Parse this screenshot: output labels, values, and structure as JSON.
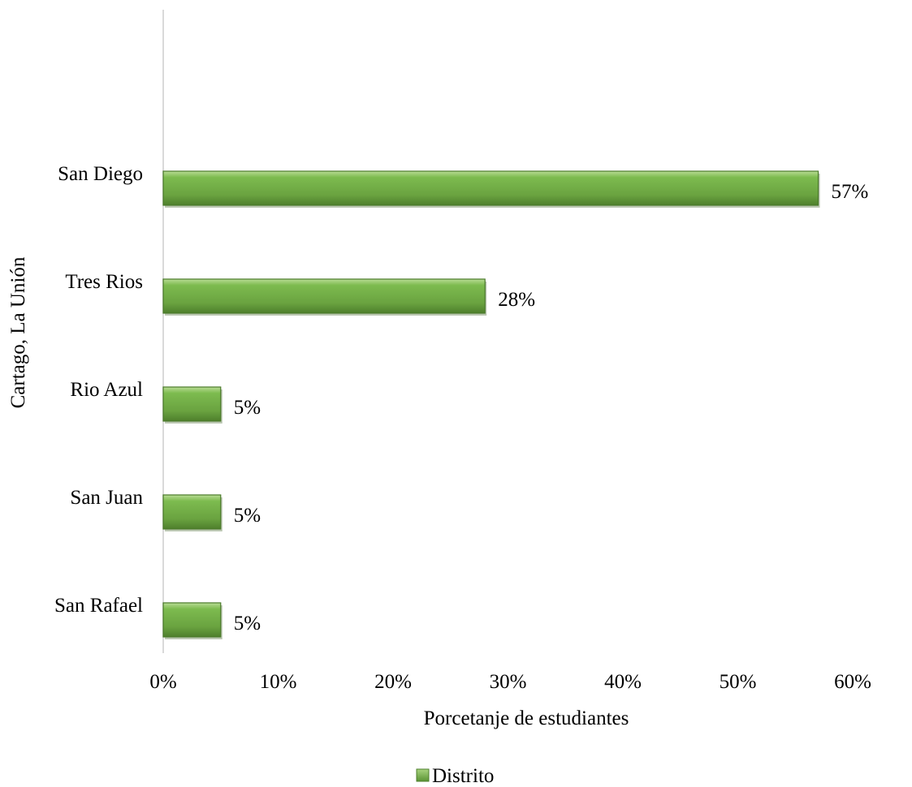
{
  "chart_data": {
    "type": "bar",
    "orientation": "horizontal",
    "categories": [
      "San Diego",
      "Tres Rios",
      "Rio Azul",
      "San Juan",
      "San Rafael"
    ],
    "series": [
      {
        "name": "Distrito",
        "values": [
          57,
          28,
          5,
          5,
          5
        ],
        "color": "#70ad47"
      }
    ],
    "data_labels": [
      "57%",
      "28%",
      "5%",
      "5%",
      "5%"
    ],
    "xlabel": "Porcetanje de estudiantes",
    "ylabel": "Cartago, La Unión",
    "xlim": [
      0,
      60
    ],
    "x_ticks": [
      0,
      10,
      20,
      30,
      40,
      50,
      60
    ],
    "x_tick_labels": [
      "0%",
      "10%",
      "20%",
      "30%",
      "40%",
      "50%",
      "60%"
    ],
    "grid": false,
    "legend_position": "bottom"
  }
}
